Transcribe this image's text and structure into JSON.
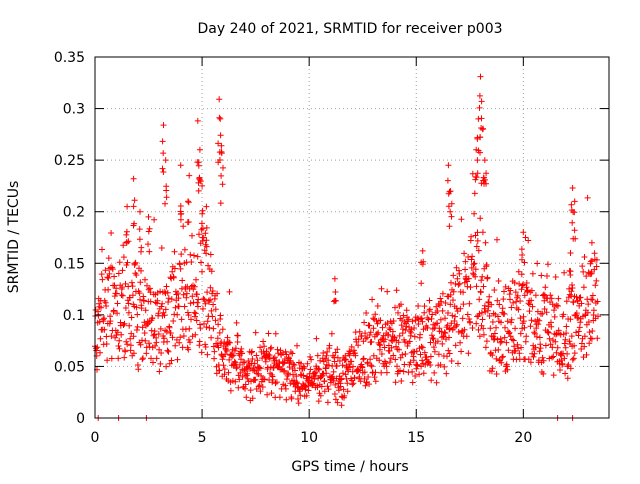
{
  "chart_data": {
    "type": "scatter",
    "title": "Day 240 of 2021, SRMTID for receiver p003",
    "xlabel": "GPS time / hours",
    "ylabel": "SRMTID / TECUs",
    "xlim": [
      0,
      24
    ],
    "ylim": [
      0,
      0.35
    ],
    "xticks": [
      0,
      5,
      10,
      15,
      20
    ],
    "xtick_labels": [
      "0",
      "5",
      "10",
      "15",
      "20"
    ],
    "yticks": [
      0,
      0.05,
      0.1,
      0.15,
      0.2,
      0.25,
      0.3,
      0.35
    ],
    "ytick_labels": [
      "0",
      "0.05",
      "0.1",
      "0.15",
      "0.2",
      "0.25",
      "0.3",
      "0.35"
    ],
    "grid": true,
    "marker": "plus",
    "color": "#ff0000",
    "trend": [
      [
        0.0,
        0.08
      ],
      [
        0.5,
        0.1
      ],
      [
        1.0,
        0.11
      ],
      [
        1.5,
        0.115
      ],
      [
        2.0,
        0.1
      ],
      [
        2.5,
        0.09
      ],
      [
        3.0,
        0.09
      ],
      [
        3.5,
        0.1
      ],
      [
        4.0,
        0.11
      ],
      [
        4.5,
        0.12
      ],
      [
        5.0,
        0.13
      ],
      [
        5.5,
        0.1
      ],
      [
        6.0,
        0.06
      ],
      [
        7.0,
        0.045
      ],
      [
        8.0,
        0.05
      ],
      [
        9.0,
        0.045
      ],
      [
        10.0,
        0.035
      ],
      [
        11.0,
        0.045
      ],
      [
        11.5,
        0.035
      ],
      [
        12.0,
        0.05
      ],
      [
        13.0,
        0.065
      ],
      [
        14.0,
        0.07
      ],
      [
        15.0,
        0.07
      ],
      [
        16.0,
        0.08
      ],
      [
        17.0,
        0.1
      ],
      [
        17.5,
        0.12
      ],
      [
        18.0,
        0.14
      ],
      [
        18.5,
        0.09
      ],
      [
        19.0,
        0.08
      ],
      [
        19.5,
        0.09
      ],
      [
        20.0,
        0.1
      ],
      [
        20.5,
        0.08
      ],
      [
        21.0,
        0.09
      ],
      [
        21.5,
        0.085
      ],
      [
        22.0,
        0.08
      ],
      [
        22.5,
        0.1
      ],
      [
        23.0,
        0.11
      ],
      [
        23.5,
        0.12
      ]
    ],
    "spikes": [
      [
        3.2,
        0.284
      ],
      [
        3.3,
        0.25
      ],
      [
        4.0,
        0.245
      ],
      [
        4.4,
        0.235
      ],
      [
        4.8,
        0.288
      ],
      [
        4.9,
        0.26
      ],
      [
        5.0,
        0.225
      ],
      [
        5.2,
        0.205
      ],
      [
        5.8,
        0.309
      ],
      [
        5.85,
        0.29
      ],
      [
        5.9,
        0.258
      ],
      [
        1.5,
        0.205
      ],
      [
        1.8,
        0.232
      ],
      [
        2.1,
        0.2
      ],
      [
        2.5,
        0.195
      ],
      [
        11.2,
        0.135
      ],
      [
        15.3,
        0.162
      ],
      [
        16.5,
        0.245
      ],
      [
        16.6,
        0.22
      ],
      [
        17.8,
        0.26
      ],
      [
        17.9,
        0.29
      ],
      [
        18.0,
        0.331
      ],
      [
        18.05,
        0.307
      ],
      [
        18.1,
        0.28
      ],
      [
        18.2,
        0.25
      ],
      [
        20.0,
        0.18
      ],
      [
        22.3,
        0.223
      ],
      [
        22.4,
        0.21
      ],
      [
        22.2,
        0.16
      ],
      [
        23.2,
        0.17
      ]
    ],
    "zero_points": [
      0.15,
      1.1,
      2.4,
      21.6,
      22.3
    ]
  }
}
